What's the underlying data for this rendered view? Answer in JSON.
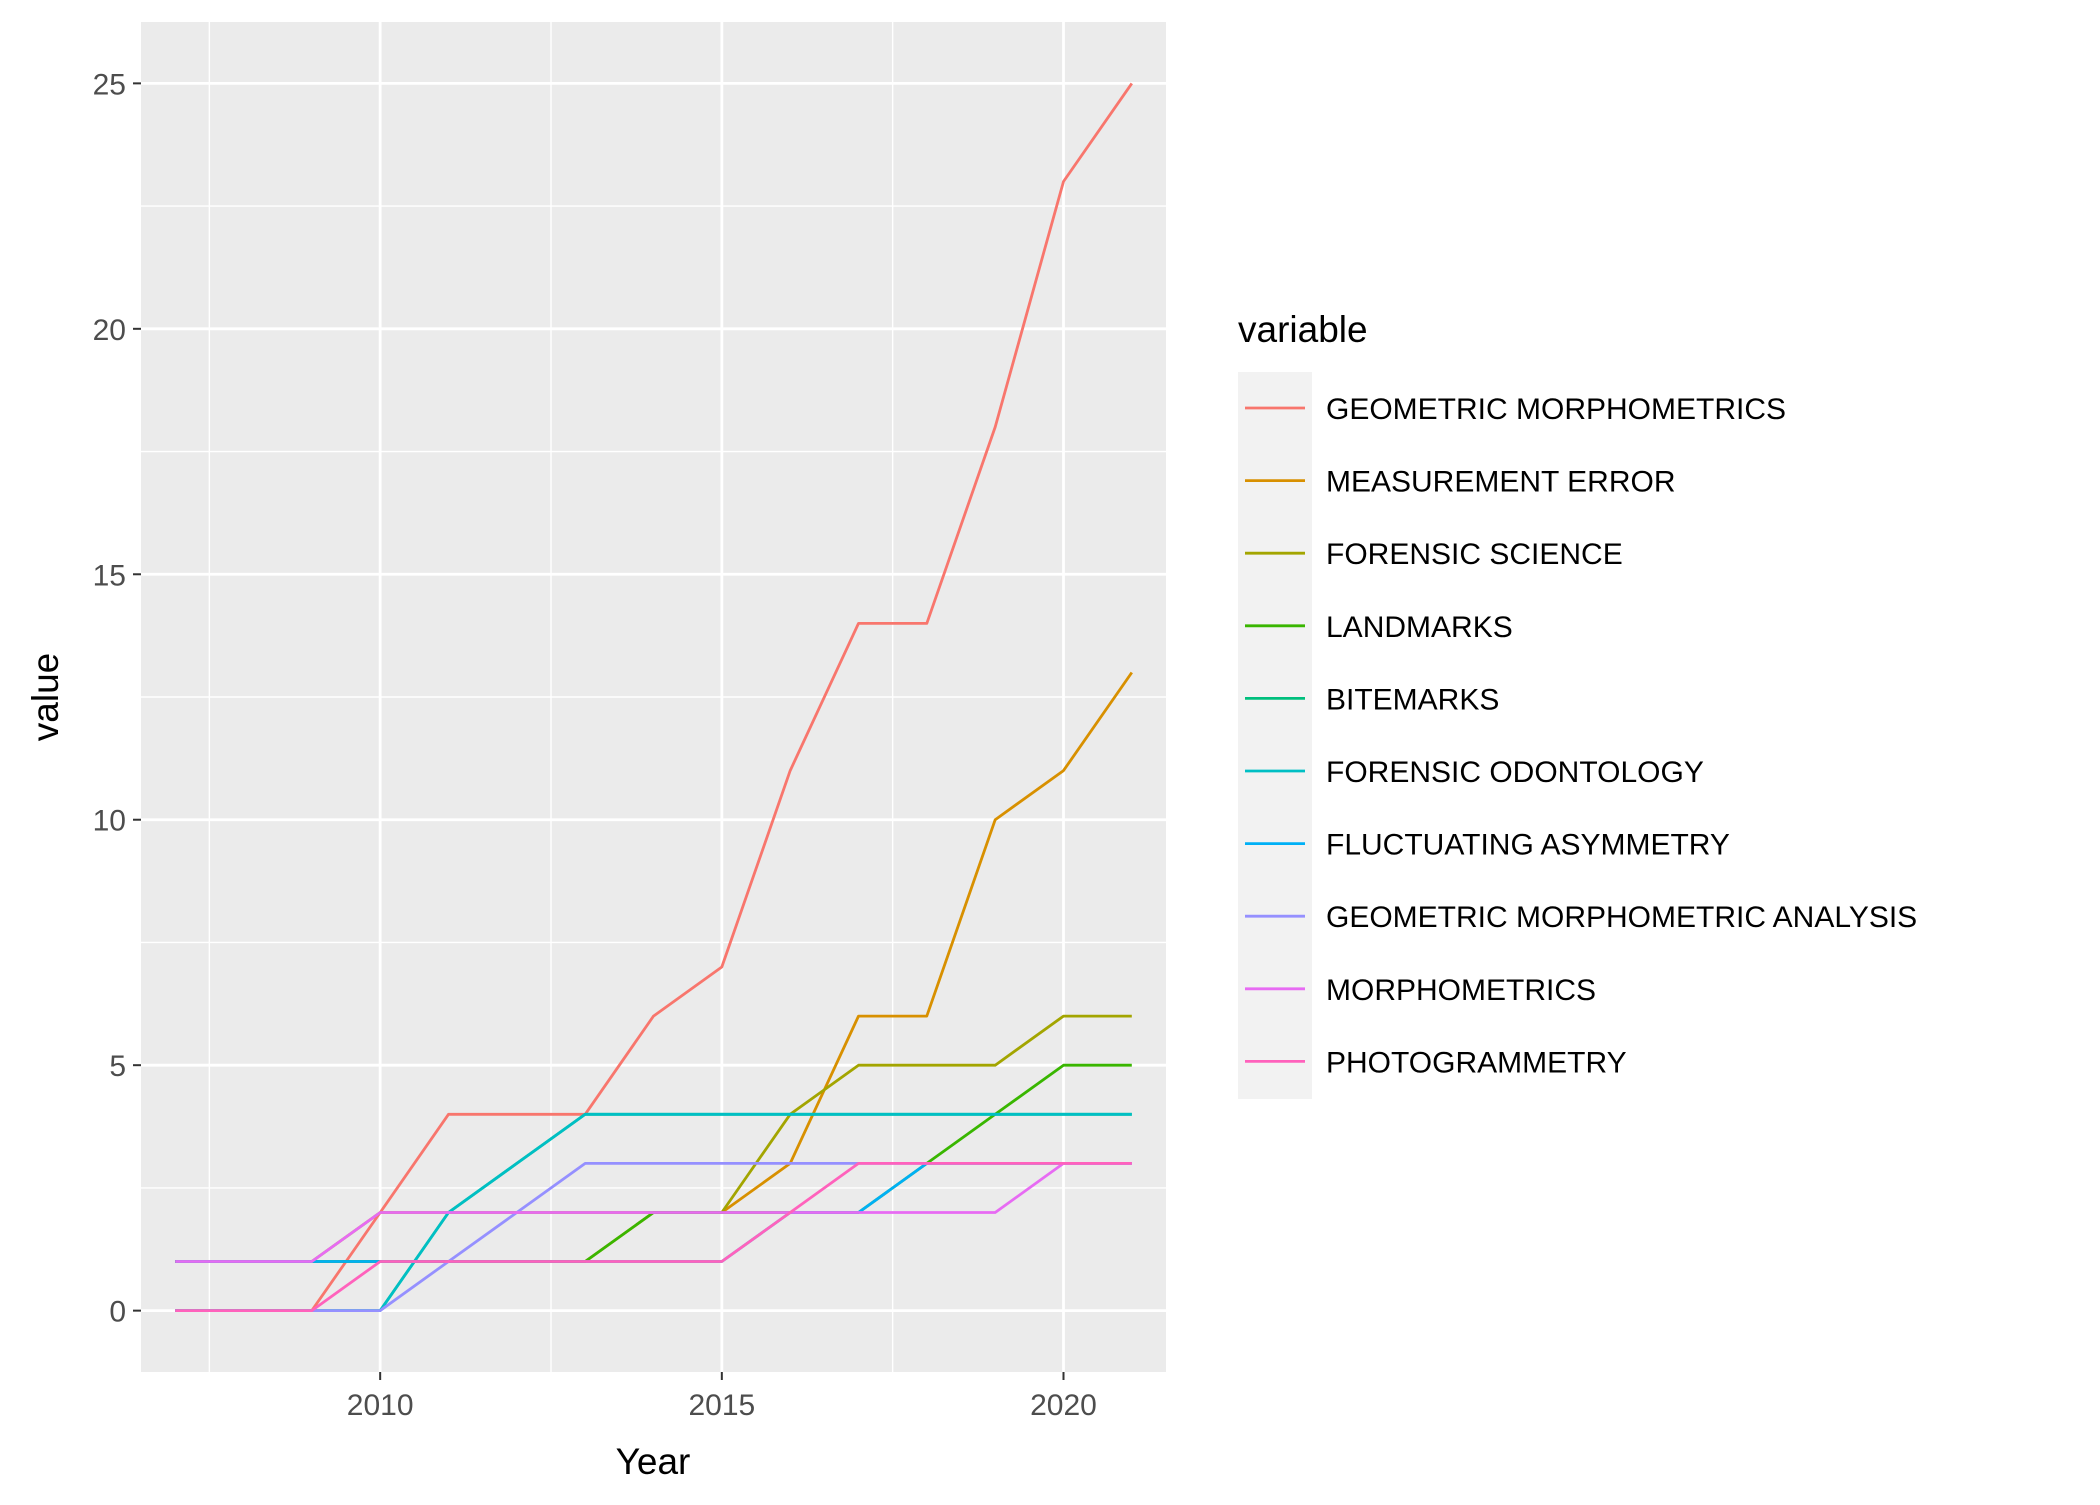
{
  "chart_data": {
    "type": "line",
    "xlabel": "Year",
    "ylabel": "value",
    "xlim": [
      2006.5,
      2021.5
    ],
    "ylim": [
      -1.25,
      26.25
    ],
    "x_ticks": [
      2010,
      2015,
      2020
    ],
    "y_ticks": [
      0,
      5,
      10,
      15,
      20,
      25
    ],
    "x": [
      2007,
      2008,
      2009,
      2010,
      2011,
      2012,
      2013,
      2014,
      2015,
      2016,
      2017,
      2018,
      2019,
      2020,
      2021
    ],
    "grid": true,
    "legend": {
      "title": "variable",
      "position": "right"
    },
    "series": [
      {
        "name": "GEOMETRIC MORPHOMETRICS",
        "color": "#F8766D",
        "values": [
          0,
          0,
          0,
          2,
          4,
          4,
          4,
          6,
          7,
          11,
          14,
          14,
          18,
          23,
          25
        ]
      },
      {
        "name": "MEASUREMENT ERROR",
        "color": "#D89000",
        "values": [
          1,
          1,
          1,
          1,
          1,
          1,
          1,
          2,
          2,
          3,
          6,
          6,
          10,
          11,
          13
        ]
      },
      {
        "name": "FORENSIC SCIENCE",
        "color": "#A3A500",
        "values": [
          1,
          1,
          1,
          2,
          2,
          2,
          2,
          2,
          2,
          4,
          5,
          5,
          5,
          6,
          6
        ]
      },
      {
        "name": "LANDMARKS",
        "color": "#39B600",
        "values": [
          1,
          1,
          1,
          1,
          1,
          1,
          1,
          2,
          2,
          2,
          2,
          3,
          4,
          5,
          5
        ]
      },
      {
        "name": "BITEMARKS",
        "color": "#00BF7D",
        "values": [
          0,
          0,
          0,
          0,
          2,
          3,
          4,
          4,
          4,
          4,
          4,
          4,
          4,
          4,
          4
        ]
      },
      {
        "name": "FORENSIC ODONTOLOGY",
        "color": "#00BFC4",
        "values": [
          0,
          0,
          0,
          0,
          2,
          3,
          4,
          4,
          4,
          4,
          4,
          4,
          4,
          4,
          4
        ]
      },
      {
        "name": "FLUCTUATING ASYMMETRY",
        "color": "#00B0F6",
        "values": [
          1,
          1,
          1,
          1,
          1,
          1,
          1,
          1,
          1,
          2,
          2,
          3,
          3,
          3,
          3
        ]
      },
      {
        "name": "GEOMETRIC MORPHOMETRIC ANALYSIS",
        "color": "#9590FF",
        "values": [
          0,
          0,
          0,
          0,
          1,
          2,
          3,
          3,
          3,
          3,
          3,
          3,
          3,
          3,
          3
        ]
      },
      {
        "name": "MORPHOMETRICS",
        "color": "#E76BF3",
        "values": [
          1,
          1,
          1,
          2,
          2,
          2,
          2,
          2,
          2,
          2,
          2,
          2,
          2,
          3,
          3
        ]
      },
      {
        "name": "PHOTOGRAMMETRY",
        "color": "#FF62BC",
        "values": [
          0,
          0,
          0,
          1,
          1,
          1,
          1,
          1,
          1,
          2,
          3,
          3,
          3,
          3,
          3
        ]
      }
    ]
  }
}
